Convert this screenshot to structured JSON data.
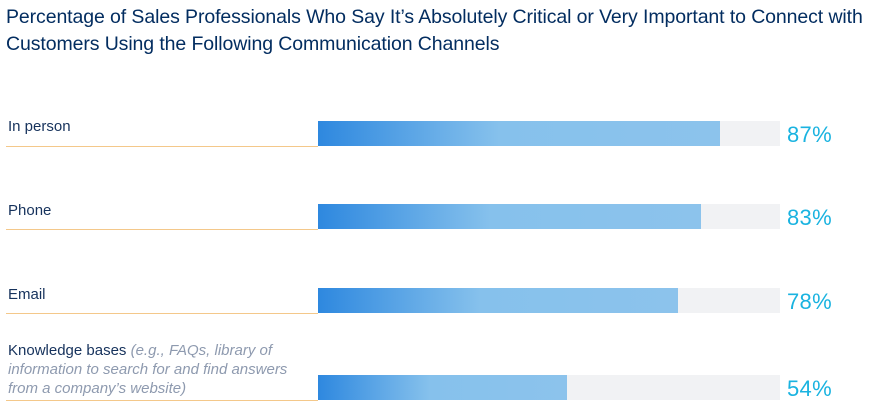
{
  "chart_data": {
    "type": "bar",
    "orientation": "horizontal",
    "title": "Percentage of Sales Professionals Who Say It’s Absolutely Critical or Very Important to Connect with Customers Using the Following Communication Channels",
    "categories": [
      "In person",
      "Phone",
      "Email",
      "Knowledge bases"
    ],
    "category_notes": [
      "",
      "",
      "",
      "(e.g., FAQs, library of information to search for and find answers from a company’s website)"
    ],
    "values": [
      87,
      83,
      78,
      54
    ],
    "value_labels": [
      "87%",
      "83%",
      "78%",
      "54%"
    ],
    "xlim": [
      0,
      100
    ],
    "xlabel": "",
    "ylabel": "",
    "grid": false,
    "legend": "none",
    "colors": {
      "title": "#032d60",
      "label": "#16325c",
      "note": "#8e9aaf",
      "bar_start": "#2e88df",
      "bar_end": "#8cc3ec",
      "track": "#f1f2f4",
      "value": "#1ab3e0",
      "underline": "#f4c88a"
    }
  }
}
